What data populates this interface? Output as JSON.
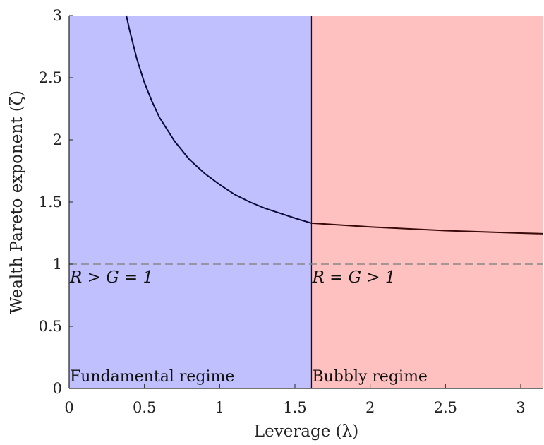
{
  "chart_data": {
    "type": "line",
    "xlabel": "Leverage (λ)",
    "ylabel": "Wealth Pareto exponent (ζ)",
    "xlim": [
      0,
      3.15
    ],
    "ylim": [
      0,
      3
    ],
    "xticks": [
      "0",
      "0.5",
      "1",
      "1.5",
      "2",
      "2.5",
      "3"
    ],
    "yticks": [
      "0",
      "0.5",
      "1",
      "1.5",
      "2",
      "2.5",
      "3"
    ],
    "grid": false,
    "regions": [
      {
        "name": "Fundamental regime",
        "condition": "R > G = 1",
        "x_range": [
          0,
          1.61
        ],
        "color": "#c0c0ff"
      },
      {
        "name": "Bubbly regime",
        "condition": "R = G > 1",
        "x_range": [
          1.61,
          3.15
        ],
        "color": "#ffc0c0"
      }
    ],
    "threshold": {
      "x": 1.61
    },
    "reference_line": {
      "y": 1,
      "style": "dashed",
      "color": "#888888"
    },
    "series": [
      {
        "color": "#0a0a3a",
        "points": [
          [
            0.38,
            3.0
          ],
          [
            0.4,
            2.89
          ],
          [
            0.45,
            2.65
          ],
          [
            0.5,
            2.46
          ],
          [
            0.55,
            2.31
          ],
          [
            0.6,
            2.18
          ],
          [
            0.7,
            1.99
          ],
          [
            0.8,
            1.84
          ],
          [
            0.9,
            1.73
          ],
          [
            1.0,
            1.64
          ],
          [
            1.1,
            1.56
          ],
          [
            1.2,
            1.5
          ],
          [
            1.3,
            1.45
          ],
          [
            1.4,
            1.41
          ],
          [
            1.5,
            1.37
          ],
          [
            1.61,
            1.33
          ]
        ]
      },
      {
        "color": "#3a0a0a",
        "points": [
          [
            1.61,
            1.33
          ],
          [
            2.0,
            1.3
          ],
          [
            2.5,
            1.27
          ],
          [
            3.0,
            1.25
          ],
          [
            3.15,
            1.245
          ]
        ]
      }
    ]
  }
}
